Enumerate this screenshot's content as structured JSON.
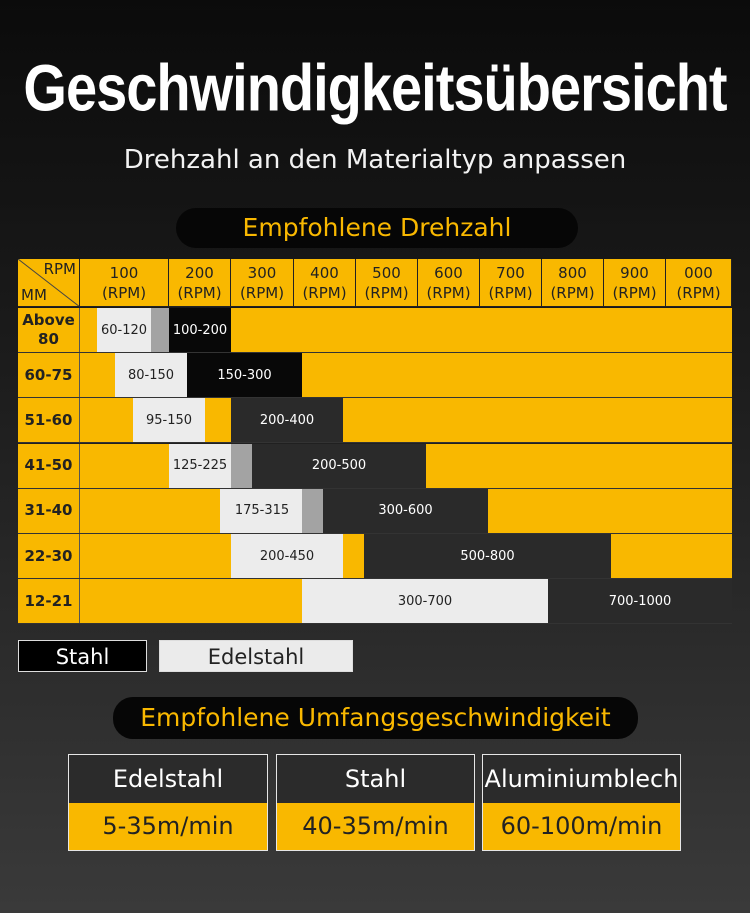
{
  "title": "Geschwindigkeitsübersicht",
  "subtitle": "Drehzahl an den Materialtyp anpassen",
  "section1_title": "Empfohlene Drehzahl",
  "section2_title": "Empfohlene Umfangsgeschwindigkeit",
  "table": {
    "corner_top": "RPM",
    "corner_bottom": "MM",
    "columns": [
      {
        "value": "100",
        "unit": "(RPM)"
      },
      {
        "value": "200",
        "unit": "(RPM)"
      },
      {
        "value": "300",
        "unit": "(RPM)"
      },
      {
        "value": "400",
        "unit": "(RPM)"
      },
      {
        "value": "500",
        "unit": "(RPM)"
      },
      {
        "value": "600",
        "unit": "(RPM)"
      },
      {
        "value": "700",
        "unit": "(RPM)"
      },
      {
        "value": "800",
        "unit": "(RPM)"
      },
      {
        "value": "900",
        "unit": "(RPM)"
      },
      {
        "value": "000",
        "unit": "(RPM)"
      }
    ],
    "rows": [
      {
        "label": "Above\n80",
        "edelstahl": "60-120",
        "stahl": "100-200"
      },
      {
        "label": "60-75",
        "edelstahl": "80-150",
        "stahl": "150-300"
      },
      {
        "label": "51-60",
        "edelstahl": "95-150",
        "stahl": "200-400"
      },
      {
        "label": "41-50",
        "edelstahl": "125-225",
        "stahl": "200-500"
      },
      {
        "label": "31-40",
        "edelstahl": "175-315",
        "stahl": "300-600"
      },
      {
        "label": "22-30",
        "edelstahl": "200-450",
        "stahl": "500-800"
      },
      {
        "label": "12-21",
        "edelstahl": "300-700",
        "stahl": "700-1000"
      }
    ]
  },
  "legend": {
    "stahl": "Stahl",
    "edelstahl": "Edelstahl"
  },
  "speeds": [
    {
      "material": "Edelstahl",
      "speed": "5-35m/min"
    },
    {
      "material": "Stahl",
      "speed": "40-35m/min"
    },
    {
      "material": "Aluminiumblech",
      "speed": "60-100m/min"
    }
  ],
  "colors": {
    "accent": "#f9b800",
    "dark": "#2a2a2a",
    "light": "#ececec"
  }
}
